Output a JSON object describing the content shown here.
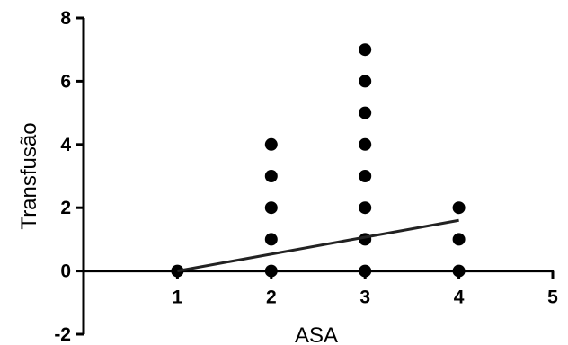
{
  "chart_data": {
    "type": "scatter",
    "xlabel": "ASA",
    "ylabel": "Transfusão",
    "xlim": [
      0,
      5
    ],
    "ylim": [
      -2,
      8
    ],
    "x_ticks": [
      1,
      2,
      3,
      4,
      5
    ],
    "y_ticks": [
      -2,
      0,
      2,
      4,
      6,
      8
    ],
    "grid": false,
    "points": [
      {
        "x": 1,
        "y": 0
      },
      {
        "x": 2,
        "y": 0
      },
      {
        "x": 2,
        "y": 1
      },
      {
        "x": 2,
        "y": 2
      },
      {
        "x": 2,
        "y": 3
      },
      {
        "x": 2,
        "y": 4
      },
      {
        "x": 3,
        "y": 0
      },
      {
        "x": 3,
        "y": 1
      },
      {
        "x": 3,
        "y": 2
      },
      {
        "x": 3,
        "y": 3
      },
      {
        "x": 3,
        "y": 4
      },
      {
        "x": 3,
        "y": 5
      },
      {
        "x": 3,
        "y": 6
      },
      {
        "x": 3,
        "y": 7
      },
      {
        "x": 4,
        "y": 0
      },
      {
        "x": 4,
        "y": 1
      },
      {
        "x": 4,
        "y": 2
      }
    ],
    "trend_line": {
      "x": [
        1,
        4
      ],
      "y": [
        0,
        1.6
      ]
    },
    "colors": {
      "points": "#000000",
      "line": "#222222",
      "axes": "#000000"
    }
  }
}
